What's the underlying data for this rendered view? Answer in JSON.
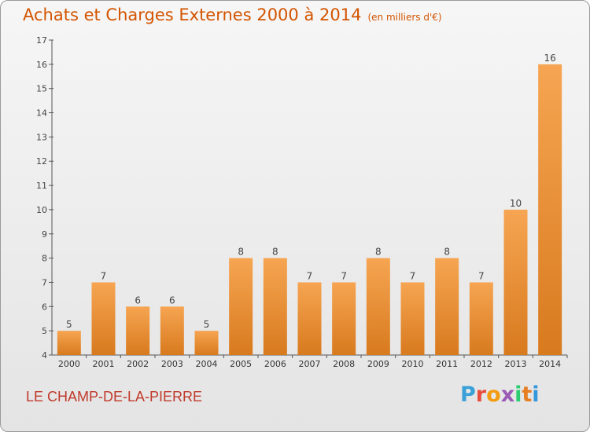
{
  "header": {
    "title": "Achats et Charges Externes 2000 à 2014",
    "subtitle": "(en milliers d'€)"
  },
  "footer": {
    "place": "LE CHAMP-DE-LA-PIERRE",
    "logo": "Proxiti",
    "logo_colors": [
      "#3aa0d8",
      "#e74c3c",
      "#f39c12",
      "#9b59b6",
      "#2ecc71",
      "#e67e22",
      "#3498db"
    ]
  },
  "chart_data": {
    "type": "bar",
    "title": "Achats et Charges Externes 2000 à 2014",
    "subtitle": "(en milliers d'€)",
    "categories": [
      "2000",
      "2001",
      "2002",
      "2003",
      "2004",
      "2005",
      "2006",
      "2007",
      "2008",
      "2009",
      "2010",
      "2011",
      "2012",
      "2013",
      "2014"
    ],
    "values": [
      5,
      7,
      6,
      6,
      5,
      8,
      8,
      7,
      7,
      8,
      7,
      8,
      7,
      10,
      16
    ],
    "ylim": [
      4,
      17
    ],
    "yticks": [
      4,
      5,
      6,
      7,
      8,
      9,
      10,
      11,
      12,
      13,
      14,
      15,
      16,
      17
    ],
    "grid": false,
    "bar_color": "#f0a04b"
  }
}
